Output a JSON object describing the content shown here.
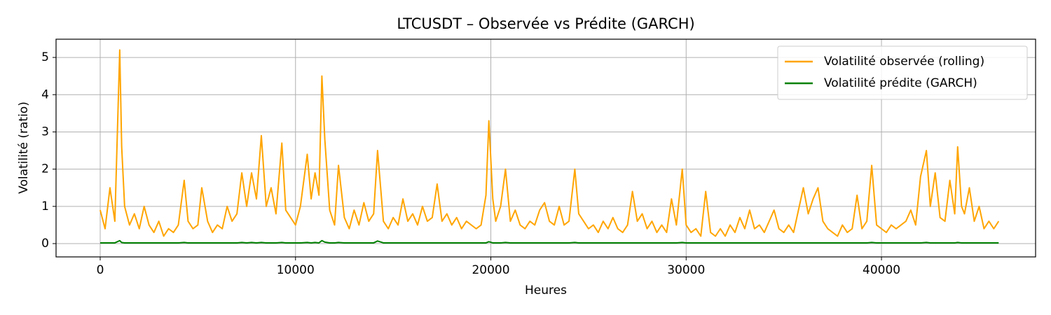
{
  "chart_data": {
    "type": "line",
    "title": "LTCUSDT – Observée vs Prédite (GARCH)",
    "x_label": "Heures",
    "y_label": "Volatilité (ratio)",
    "x": [
      0,
      250,
      500,
      750,
      1000,
      1100,
      1250,
      1500,
      1750,
      2000,
      2250,
      2500,
      2750,
      3000,
      3250,
      3500,
      3750,
      4000,
      4300,
      4500,
      4750,
      5000,
      5200,
      5500,
      5750,
      6000,
      6250,
      6500,
      6750,
      7000,
      7250,
      7500,
      7750,
      8000,
      8250,
      8500,
      8750,
      9000,
      9300,
      9500,
      9750,
      10000,
      10250,
      10600,
      10800,
      11000,
      11200,
      11350,
      11500,
      11750,
      12000,
      12200,
      12500,
      12750,
      13000,
      13250,
      13500,
      13750,
      14000,
      14200,
      14500,
      14750,
      15000,
      15250,
      15500,
      15750,
      16000,
      16250,
      16500,
      16750,
      17000,
      17250,
      17500,
      17750,
      18000,
      18250,
      18500,
      18750,
      19000,
      19250,
      19500,
      19750,
      19900,
      20100,
      20250,
      20500,
      20750,
      21000,
      21250,
      21500,
      21750,
      22000,
      22250,
      22500,
      22750,
      23000,
      23250,
      23500,
      23750,
      24000,
      24300,
      24500,
      24750,
      25000,
      25250,
      25500,
      25750,
      26000,
      26250,
      26500,
      26750,
      27000,
      27250,
      27500,
      27750,
      28000,
      28250,
      28500,
      28750,
      29000,
      29250,
      29500,
      29800,
      30000,
      30250,
      30500,
      30750,
      31000,
      31250,
      31500,
      31750,
      32000,
      32250,
      32500,
      32750,
      33000,
      33250,
      33500,
      33750,
      34000,
      34250,
      34500,
      34750,
      35000,
      35250,
      35500,
      35750,
      36000,
      36250,
      36500,
      36750,
      37000,
      37250,
      37500,
      37750,
      38000,
      38250,
      38500,
      38750,
      39000,
      39250,
      39500,
      39750,
      40000,
      40250,
      40500,
      40750,
      41000,
      41250,
      41500,
      41750,
      42000,
      42300,
      42500,
      42750,
      43000,
      43250,
      43500,
      43750,
      43900,
      44100,
      44250,
      44500,
      44750,
      45000,
      45250,
      45500,
      45750,
      46000
    ],
    "series": [
      {
        "name": "Volatilité observée (rolling)",
        "color": "#ffa500",
        "values": [
          0.9,
          0.4,
          1.5,
          0.6,
          5.2,
          2.6,
          1.0,
          0.5,
          0.8,
          0.4,
          1.0,
          0.5,
          0.3,
          0.6,
          0.2,
          0.4,
          0.3,
          0.5,
          1.7,
          0.6,
          0.4,
          0.5,
          1.5,
          0.6,
          0.3,
          0.5,
          0.4,
          1.0,
          0.6,
          0.8,
          1.9,
          1.0,
          1.9,
          1.2,
          2.9,
          1.0,
          1.5,
          0.8,
          2.7,
          0.9,
          0.7,
          0.5,
          1.0,
          2.4,
          1.2,
          1.9,
          1.3,
          4.5,
          2.8,
          0.9,
          0.5,
          2.1,
          0.7,
          0.4,
          0.9,
          0.5,
          1.1,
          0.6,
          0.8,
          2.5,
          0.6,
          0.4,
          0.7,
          0.5,
          1.2,
          0.6,
          0.8,
          0.5,
          1.0,
          0.6,
          0.7,
          1.6,
          0.6,
          0.8,
          0.5,
          0.7,
          0.4,
          0.6,
          0.5,
          0.4,
          0.5,
          1.3,
          3.3,
          1.2,
          0.6,
          1.0,
          2.0,
          0.6,
          0.9,
          0.5,
          0.4,
          0.6,
          0.5,
          0.9,
          1.1,
          0.6,
          0.5,
          1.0,
          0.5,
          0.6,
          2.0,
          0.8,
          0.6,
          0.4,
          0.5,
          0.3,
          0.6,
          0.4,
          0.7,
          0.4,
          0.3,
          0.5,
          1.4,
          0.6,
          0.8,
          0.4,
          0.6,
          0.3,
          0.5,
          0.3,
          1.2,
          0.5,
          2.0,
          0.5,
          0.3,
          0.4,
          0.2,
          1.4,
          0.3,
          0.2,
          0.4,
          0.2,
          0.5,
          0.3,
          0.7,
          0.4,
          0.9,
          0.4,
          0.5,
          0.3,
          0.6,
          0.9,
          0.4,
          0.3,
          0.5,
          0.3,
          0.9,
          1.5,
          0.8,
          1.2,
          1.5,
          0.6,
          0.4,
          0.3,
          0.2,
          0.5,
          0.3,
          0.4,
          1.3,
          0.4,
          0.6,
          2.1,
          0.5,
          0.4,
          0.3,
          0.5,
          0.4,
          0.5,
          0.6,
          0.9,
          0.5,
          1.8,
          2.5,
          1.0,
          1.9,
          0.7,
          0.6,
          1.7,
          0.8,
          2.6,
          1.0,
          0.8,
          1.5,
          0.6,
          1.0,
          0.4,
          0.6,
          0.4,
          0.6
        ]
      },
      {
        "name": "Volatilité prédite (GARCH)",
        "color": "#008000",
        "values": [
          0.02,
          0.02,
          0.02,
          0.02,
          0.08,
          0.03,
          0.02,
          0.02,
          0.02,
          0.02,
          0.02,
          0.02,
          0.02,
          0.02,
          0.02,
          0.02,
          0.02,
          0.02,
          0.03,
          0.02,
          0.02,
          0.02,
          0.02,
          0.02,
          0.02,
          0.02,
          0.02,
          0.02,
          0.02,
          0.02,
          0.03,
          0.02,
          0.03,
          0.02,
          0.03,
          0.02,
          0.02,
          0.02,
          0.03,
          0.02,
          0.02,
          0.02,
          0.02,
          0.03,
          0.02,
          0.03,
          0.02,
          0.08,
          0.04,
          0.02,
          0.02,
          0.03,
          0.02,
          0.02,
          0.02,
          0.02,
          0.02,
          0.02,
          0.02,
          0.07,
          0.02,
          0.02,
          0.02,
          0.02,
          0.02,
          0.02,
          0.02,
          0.02,
          0.02,
          0.02,
          0.02,
          0.02,
          0.02,
          0.02,
          0.02,
          0.02,
          0.02,
          0.02,
          0.02,
          0.02,
          0.02,
          0.02,
          0.05,
          0.02,
          0.02,
          0.02,
          0.03,
          0.02,
          0.02,
          0.02,
          0.02,
          0.02,
          0.02,
          0.02,
          0.02,
          0.02,
          0.02,
          0.02,
          0.02,
          0.02,
          0.03,
          0.02,
          0.02,
          0.02,
          0.02,
          0.02,
          0.02,
          0.02,
          0.02,
          0.02,
          0.02,
          0.02,
          0.02,
          0.02,
          0.02,
          0.02,
          0.02,
          0.02,
          0.02,
          0.02,
          0.02,
          0.02,
          0.03,
          0.02,
          0.02,
          0.02,
          0.02,
          0.02,
          0.02,
          0.02,
          0.02,
          0.02,
          0.02,
          0.02,
          0.02,
          0.02,
          0.02,
          0.02,
          0.02,
          0.02,
          0.02,
          0.02,
          0.02,
          0.02,
          0.02,
          0.02,
          0.02,
          0.02,
          0.02,
          0.02,
          0.02,
          0.02,
          0.02,
          0.02,
          0.02,
          0.02,
          0.02,
          0.02,
          0.02,
          0.02,
          0.02,
          0.03,
          0.02,
          0.02,
          0.02,
          0.02,
          0.02,
          0.02,
          0.02,
          0.02,
          0.02,
          0.02,
          0.03,
          0.02,
          0.02,
          0.02,
          0.02,
          0.02,
          0.02,
          0.03,
          0.02,
          0.02,
          0.02,
          0.02,
          0.02,
          0.02,
          0.02,
          0.02,
          0.02
        ]
      }
    ],
    "xlim": [
      -2260,
      47890
    ],
    "ylim": [
      -0.357,
      5.49
    ],
    "xticks": [
      0,
      10000,
      20000,
      30000,
      40000
    ],
    "yticks": [
      0,
      1,
      2,
      3,
      4,
      5
    ],
    "grid": true,
    "legend": "upper right"
  }
}
